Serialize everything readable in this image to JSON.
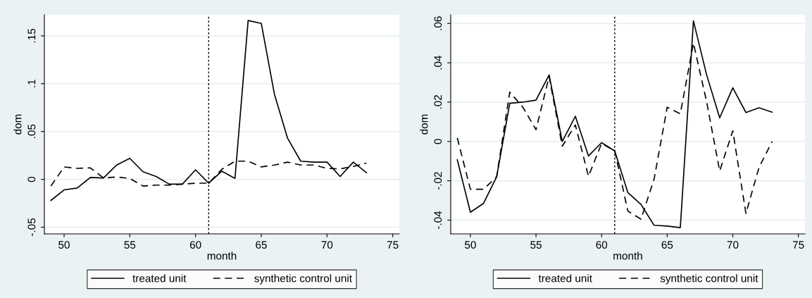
{
  "chart_data": [
    {
      "type": "line",
      "xlabel": "month",
      "ylabel": "dom",
      "x": [
        49,
        50,
        51,
        52,
        53,
        54,
        55,
        56,
        57,
        58,
        59,
        60,
        61,
        62,
        63,
        64,
        65,
        66,
        67,
        68,
        69,
        70,
        71,
        72,
        73
      ],
      "series": [
        {
          "name": "treated unit",
          "color": "#000000",
          "line_style": "solid",
          "values": [
            -0.022,
            -0.011,
            -0.009,
            0.002,
            0.0015,
            0.015,
            0.022,
            0.008,
            0.003,
            -0.005,
            -0.005,
            0.01,
            -0.004,
            0.0086,
            0.001,
            0.166,
            0.163,
            0.089,
            0.043,
            0.019,
            0.018,
            0.018,
            0.003,
            0.018,
            0.007
          ]
        },
        {
          "name": "synthetic control unit",
          "color": "#000000",
          "line_style": "dashed",
          "values": [
            -0.007,
            0.013,
            0.0115,
            0.012,
            0.0015,
            0.0025,
            0.001,
            -0.007,
            -0.006,
            -0.006,
            -0.005,
            -0.004,
            -0.004,
            0.0105,
            0.019,
            0.019,
            0.013,
            0.015,
            0.018,
            0.015,
            0.015,
            0.0115,
            0.011,
            0.0135,
            0.017
          ]
        }
      ],
      "xlim": [
        48.5,
        75.5
      ],
      "xticks": [
        50,
        55,
        60,
        65,
        70,
        75
      ],
      "ylim": [
        -0.057,
        0.172
      ],
      "yticks": [
        {
          "value": -0.05,
          "label": "-.05"
        },
        {
          "value": 0,
          "label": "0"
        },
        {
          "value": 0.05,
          "label": ".05"
        },
        {
          "value": 0.1,
          "label": ".1"
        },
        {
          "value": 0.15,
          "label": ".15"
        }
      ],
      "ref_lines": [
        {
          "axis": "x",
          "value": 61,
          "color": "#000000",
          "line_style": "dotted"
        }
      ],
      "grid": "y",
      "legend": "bottom",
      "marker": "none"
    },
    {
      "type": "line",
      "xlabel": "month",
      "ylabel": "dom",
      "x": [
        49,
        50,
        51,
        52,
        53,
        54,
        55,
        56,
        57,
        58,
        59,
        60,
        61,
        62,
        63,
        64,
        65,
        66,
        67,
        68,
        69,
        70,
        71,
        72,
        73
      ],
      "series": [
        {
          "name": "treated unit",
          "color": "#000000",
          "line_style": "solid",
          "values": [
            -0.0093,
            -0.036,
            -0.0315,
            -0.018,
            0.0194,
            0.02,
            0.021,
            0.0338,
            0,
            0.0128,
            -0.0074,
            -0.0006,
            -0.0048,
            -0.026,
            -0.032,
            -0.0426,
            -0.043,
            -0.0438,
            0.0613,
            0.034,
            0.012,
            0.0273,
            0.0147,
            0.0171,
            0.0149
          ]
        },
        {
          "name": "synthetic control unit",
          "color": "#000000",
          "line_style": "dashed",
          "values": [
            0.0018,
            -0.0243,
            -0.0243,
            -0.018,
            0.0251,
            0.0174,
            0.006,
            0.033,
            -0.0024,
            0.0084,
            -0.0177,
            -0.001,
            -0.0048,
            -0.0354,
            -0.0395,
            -0.0192,
            0.0174,
            0.0141,
            0.05,
            0.0204,
            -0.015,
            0.0054,
            -0.0366,
            -0.0132,
            0
          ]
        }
      ],
      "xlim": [
        48.5,
        75.5
      ],
      "xticks": [
        50,
        55,
        60,
        65,
        70,
        75
      ],
      "ylim": [
        -0.047,
        0.0644
      ],
      "yticks": [
        {
          "value": -0.04,
          "label": "-.04"
        },
        {
          "value": -0.02,
          "label": "-.02"
        },
        {
          "value": 0,
          "label": "0"
        },
        {
          "value": 0.02,
          "label": ".02"
        },
        {
          "value": 0.04,
          "label": ".04"
        },
        {
          "value": 0.06,
          "label": ".06"
        }
      ],
      "ref_lines": [
        {
          "axis": "x",
          "value": 61,
          "color": "#000000",
          "line_style": "dotted"
        }
      ],
      "grid": "y",
      "legend": "bottom",
      "marker": "none"
    }
  ]
}
